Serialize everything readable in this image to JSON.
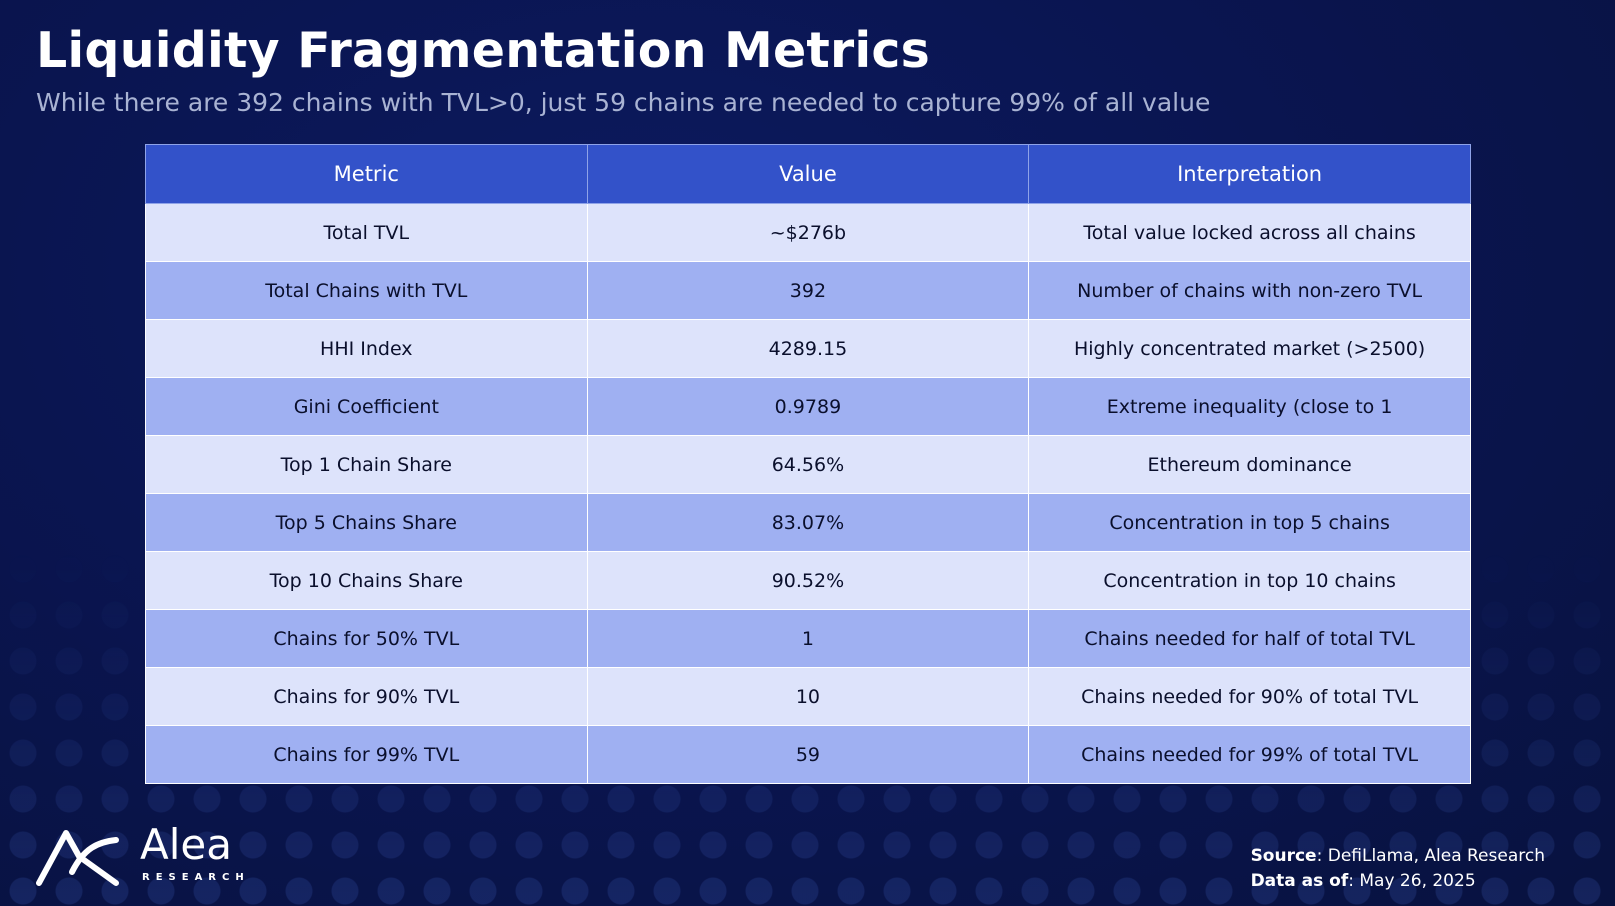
{
  "title": "Liquidity Fragmentation Metrics",
  "subtitle": "While there are 392 chains with TVL>0, just 59 chains are needed to capture 99% of all value",
  "chart_data": {
    "type": "table",
    "columns": [
      "Metric",
      "Value",
      "Interpretation"
    ],
    "rows": [
      [
        "Total TVL",
        "~$276b",
        "Total value locked across all chains"
      ],
      [
        "Total Chains with TVL",
        "392",
        "Number of chains with non-zero TVL"
      ],
      [
        "HHI Index",
        "4289.15",
        "Highly concentrated market (>2500)"
      ],
      [
        "Gini Coefficient",
        "0.9789",
        "Extreme inequality (close to 1"
      ],
      [
        "Top 1 Chain Share",
        "64.56%",
        "Ethereum dominance"
      ],
      [
        "Top 5 Chains Share",
        "83.07%",
        "Concentration in top 5 chains"
      ],
      [
        "Top 10 Chains Share",
        "90.52%",
        "Concentration in top 10 chains"
      ],
      [
        "Chains for 50% TVL",
        "1",
        "Chains needed for half of total TVL"
      ],
      [
        "Chains for 90% TVL",
        "10",
        "Chains needed for 90% of total TVL"
      ],
      [
        "Chains for 99% TVL",
        "59",
        "Chains needed for 99% of total TVL"
      ]
    ]
  },
  "logo": {
    "name": "Alea",
    "sub": "RESEARCH",
    "icon": "alea-logo-icon"
  },
  "footer": {
    "source_label": "Source",
    "source_text": ": DefiLlama, Alea Research",
    "date_label": "Data as of",
    "date_text": ": May 26, 2025"
  },
  "colors": {
    "header": "#3352c9",
    "row_light": "#dde3fb",
    "row_dark": "#9fb0f2",
    "background": "#0a1551"
  }
}
